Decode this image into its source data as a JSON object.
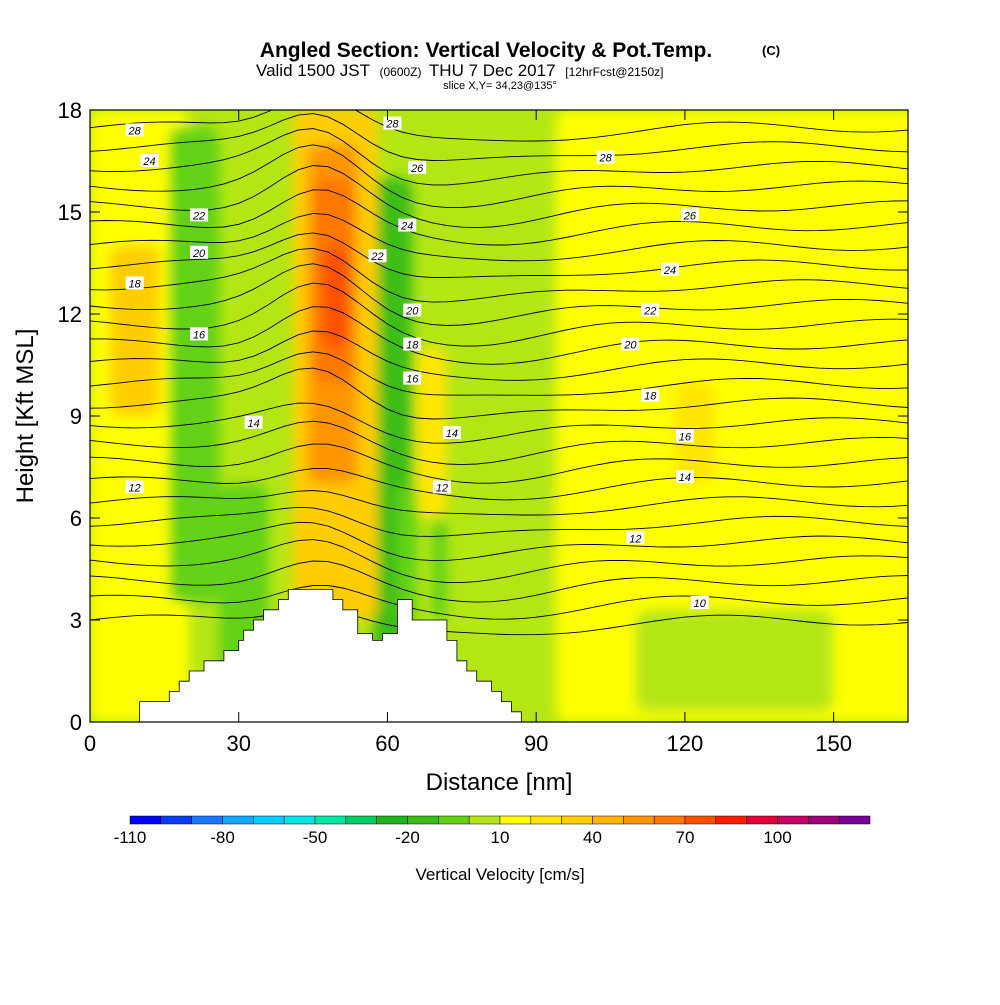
{
  "header": {
    "title_main": "Angled Section: Vertical Velocity & Pot.Temp.",
    "title_unit": "(C)",
    "valid_prefix": "Valid 1500 JST",
    "valid_utc": "(0600Z)",
    "valid_date": "THU 7 Dec 2017",
    "valid_fcst": "[12hrFcst@2150z]",
    "slice": "slice X,Y= 34,23@135°"
  },
  "chart_data": {
    "type": "heatmap",
    "xlabel": "Distance [nm]",
    "ylabel": "Height [Kft MSL]",
    "xlim": [
      0,
      165
    ],
    "ylim": [
      0,
      18
    ],
    "x_ticks": [
      0,
      30,
      60,
      90,
      120,
      150
    ],
    "y_ticks": [
      0,
      3,
      6,
      9,
      12,
      15,
      18
    ],
    "colorbar": {
      "label": "Vertical Velocity [cm/s]",
      "tick_values": [
        -110,
        -80,
        -50,
        -20,
        10,
        40,
        70,
        100
      ],
      "levels": [
        -110,
        -100,
        -90,
        -80,
        -70,
        -60,
        -50,
        -40,
        -30,
        -20,
        -10,
        0,
        10,
        20,
        30,
        40,
        50,
        60,
        70,
        80,
        90,
        100,
        110,
        120
      ],
      "colors": [
        "#0000ff",
        "#0a3cff",
        "#1a78ff",
        "#14aaff",
        "#00cdff",
        "#00e6e6",
        "#00e6a0",
        "#00cd64",
        "#1eb41e",
        "#3cbe14",
        "#64d214",
        "#b4e614",
        "#ffff00",
        "#ffe600",
        "#ffcd00",
        "#ffb400",
        "#ff9600",
        "#ff7800",
        "#ff5000",
        "#ff1e00",
        "#e6003c",
        "#c80064",
        "#a00078",
        "#780096"
      ]
    },
    "terrain_profile": {
      "x": [
        0,
        10,
        10,
        16,
        16,
        18,
        18,
        20,
        20,
        23,
        23,
        27,
        27,
        30,
        30,
        31,
        31,
        33,
        33,
        35,
        35,
        38,
        38,
        40,
        40,
        42,
        42,
        49,
        49,
        51,
        51,
        54,
        54,
        57,
        57,
        59,
        59,
        62,
        62,
        65,
        65,
        72,
        72,
        74,
        74,
        76,
        76,
        78,
        78,
        81,
        81,
        83,
        83,
        85,
        85,
        87,
        87,
        90,
        90,
        165
      ],
      "y": [
        0,
        0,
        0.6,
        0.6,
        0.9,
        0.9,
        1.2,
        1.2,
        1.5,
        1.5,
        1.8,
        1.8,
        2.1,
        2.1,
        2.4,
        2.4,
        2.7,
        2.7,
        3.0,
        3.0,
        3.3,
        3.3,
        3.6,
        3.6,
        3.9,
        3.9,
        3.9,
        3.9,
        3.6,
        3.6,
        3.3,
        3.3,
        2.6,
        2.6,
        2.4,
        2.4,
        2.6,
        2.6,
        3.6,
        3.6,
        3.0,
        3.0,
        2.4,
        2.4,
        1.8,
        1.8,
        1.5,
        1.5,
        1.2,
        1.2,
        0.9,
        0.9,
        0.6,
        0.6,
        0.3,
        0.3,
        0,
        0,
        0,
        0
      ]
    },
    "contour_labels": [
      {
        "text": "28",
        "x": 9,
        "y": 17.4
      },
      {
        "text": "28",
        "x": 61,
        "y": 17.6
      },
      {
        "text": "28",
        "x": 104,
        "y": 16.6
      },
      {
        "text": "24",
        "x": 12,
        "y": 16.5
      },
      {
        "text": "26",
        "x": 66,
        "y": 16.3
      },
      {
        "text": "26",
        "x": 121,
        "y": 14.9
      },
      {
        "text": "22",
        "x": 22,
        "y": 14.9
      },
      {
        "text": "24",
        "x": 64,
        "y": 14.6
      },
      {
        "text": "20",
        "x": 22,
        "y": 13.8
      },
      {
        "text": "22",
        "x": 58,
        "y": 13.7
      },
      {
        "text": "24",
        "x": 117,
        "y": 13.3
      },
      {
        "text": "18",
        "x": 9,
        "y": 12.9
      },
      {
        "text": "22",
        "x": 113,
        "y": 12.1
      },
      {
        "text": "20",
        "x": 65,
        "y": 12.1
      },
      {
        "text": "16",
        "x": 22,
        "y": 11.4
      },
      {
        "text": "18",
        "x": 65,
        "y": 11.1
      },
      {
        "text": "20",
        "x": 109,
        "y": 11.1
      },
      {
        "text": "16",
        "x": 65,
        "y": 10.1
      },
      {
        "text": "18",
        "x": 113,
        "y": 9.6
      },
      {
        "text": "14",
        "x": 33,
        "y": 8.8
      },
      {
        "text": "14",
        "x": 73,
        "y": 8.5
      },
      {
        "text": "16",
        "x": 120,
        "y": 8.4
      },
      {
        "text": "14",
        "x": 120,
        "y": 7.2
      },
      {
        "text": "12",
        "x": 9,
        "y": 6.9
      },
      {
        "text": "12",
        "x": 71,
        "y": 6.9
      },
      {
        "text": "12",
        "x": 110,
        "y": 5.4
      },
      {
        "text": "10",
        "x": 123,
        "y": 3.5
      }
    ]
  }
}
